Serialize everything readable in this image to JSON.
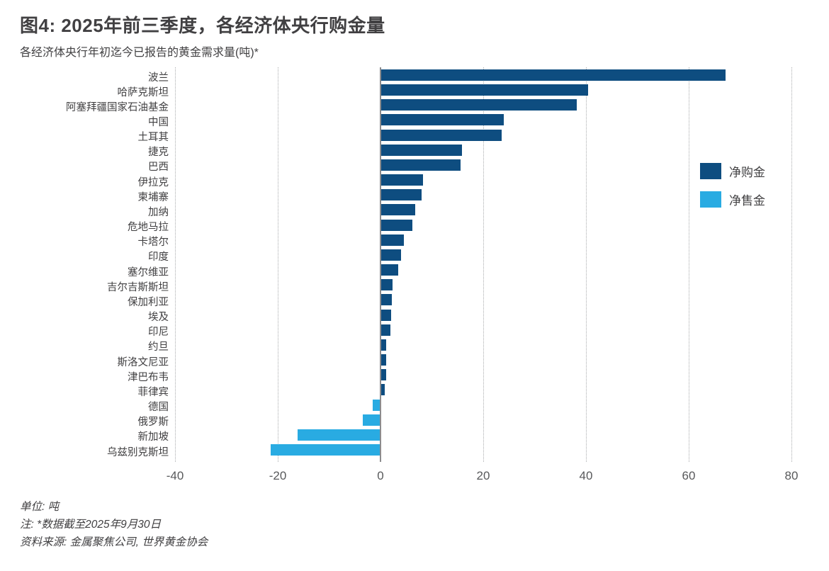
{
  "header": {
    "title": "图4: 2025年前三季度，各经济体央行购金量",
    "subtitle": "各经济体央行年初迄今已报告的黄金需求量(吨)*"
  },
  "legend": [
    {
      "name": "net-purchases",
      "label": "净购金",
      "color": "#0E4D80"
    },
    {
      "name": "net-sales",
      "label": "净售金",
      "color": "#29ABE2"
    }
  ],
  "chart_data": {
    "type": "bar",
    "orientation": "horizontal",
    "title": "图4: 2025年前三季度，各经济体央行购金量",
    "subtitle": "各经济体央行年初迄今已报告的黄金需求量(吨)*",
    "unit": "吨",
    "categories": [
      "波兰",
      "哈萨克斯坦",
      "阿塞拜疆国家石油基金",
      "中国",
      "土耳其",
      "捷克",
      "巴西",
      "伊拉克",
      "柬埔寨",
      "加纳",
      "危地马拉",
      "卡塔尔",
      "印度",
      "塞尔维亚",
      "吉尔吉斯斯坦",
      "保加利亚",
      "埃及",
      "印尼",
      "约旦",
      "斯洛文尼亚",
      "津巴布韦",
      "菲律宾",
      "德国",
      "俄罗斯",
      "新加坡",
      "乌兹别克斯坦"
    ],
    "values": [
      67.1,
      40.3,
      38.1,
      23.9,
      23.5,
      15.7,
      15.4,
      8.2,
      7.9,
      6.6,
      6.1,
      4.4,
      3.9,
      3.3,
      2.2,
      2.0,
      1.9,
      1.8,
      1.0,
      0.9,
      0.9,
      0.7,
      -1.4,
      -3.3,
      -16.0,
      -21.3
    ],
    "series_rule": "positive values = 净购金 (dark blue), negative values = 净售金 (light blue)",
    "xlim": [
      -40,
      80
    ],
    "xticks": [
      -40,
      -20,
      0,
      20,
      40,
      60,
      80
    ],
    "grid": "vertical dotted gridlines, solid zero line",
    "legend_position": "right",
    "colors": {
      "positive": "#0E4D80",
      "negative": "#29ABE2"
    }
  },
  "footer": {
    "lines": [
      "单位: 吨",
      "注: *数据截至2025年9月30日",
      "资料来源: 金属聚焦公司, 世界黄金协会"
    ]
  }
}
